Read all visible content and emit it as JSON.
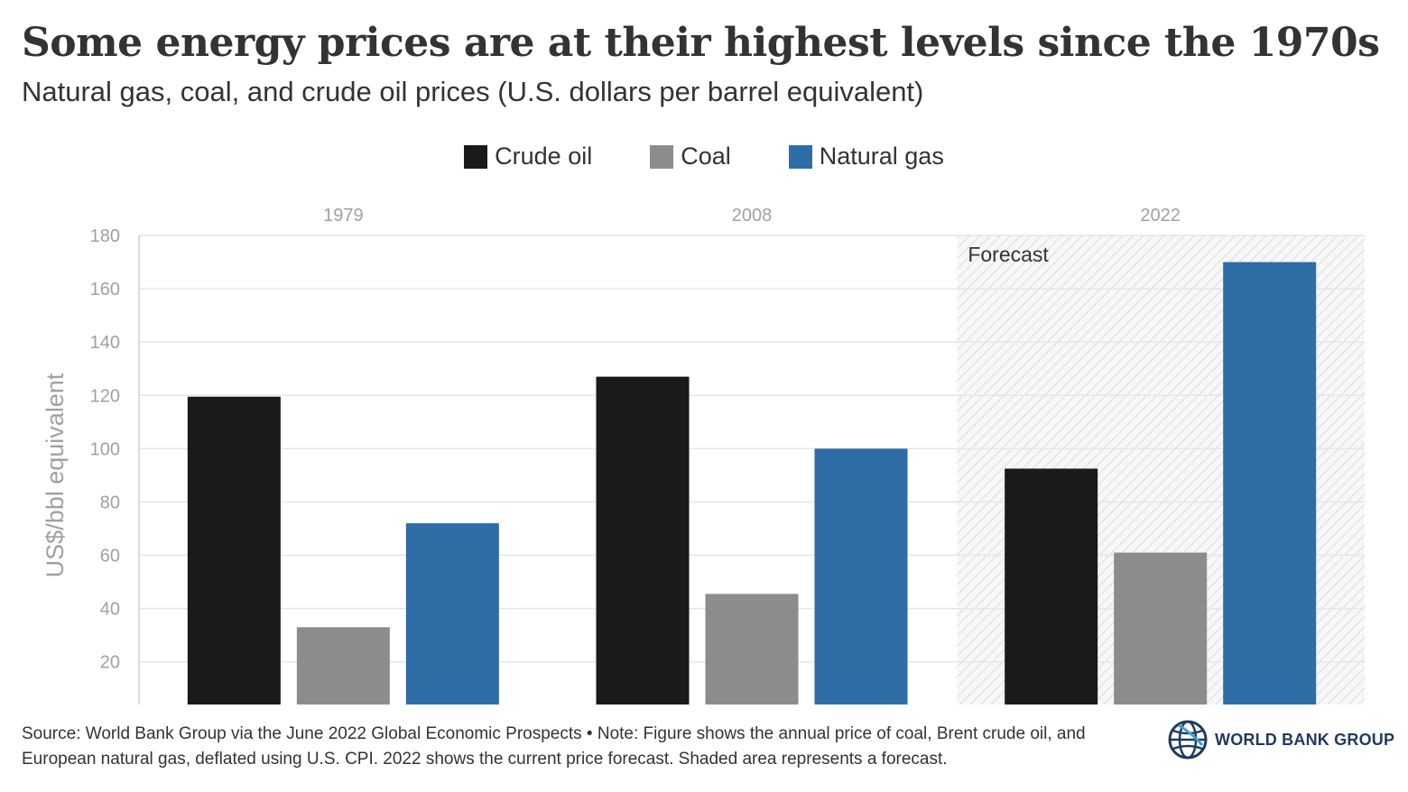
{
  "title": "Some energy prices are at their highest levels since the 1970s",
  "subtitle": "Natural gas, coal, and crude oil prices (U.S. dollars per barrel equivalent)",
  "colors": {
    "crude_oil": "#1a1a1a",
    "coal": "#8c8c8c",
    "natural_gas": "#2e6da6",
    "grid": "#e6e6e6",
    "axis_text": "#a0a0a0"
  },
  "chart_data": {
    "type": "bar",
    "categories": [
      "1979",
      "2008",
      "2022"
    ],
    "series": [
      {
        "name": "Crude oil",
        "values": [
          119.5,
          127,
          92.5
        ]
      },
      {
        "name": "Coal",
        "values": [
          33,
          45.5,
          61
        ]
      },
      {
        "name": "Natural gas",
        "values": [
          72,
          100,
          170
        ]
      }
    ],
    "ylabel": "US$/bbl equivalent",
    "ylim": [
      4,
      180
    ],
    "yticks": [
      20,
      40,
      60,
      80,
      100,
      120,
      140,
      160,
      180
    ],
    "grid": true,
    "legend_position": "top-center",
    "forecast_category": "2022",
    "forecast_label": "Forecast"
  },
  "footer": {
    "source": "Source: World Bank Group via the June 2022 Global Economic Prospects • Note: Figure shows the annual price of coal, Brent crude oil, and European natural gas, deflated using U.S. CPI. 2022 shows the current price forecast. Shaded area represents a forecast.",
    "logo_text": "WORLD BANK GROUP",
    "logo_icon": "globe-icon"
  }
}
